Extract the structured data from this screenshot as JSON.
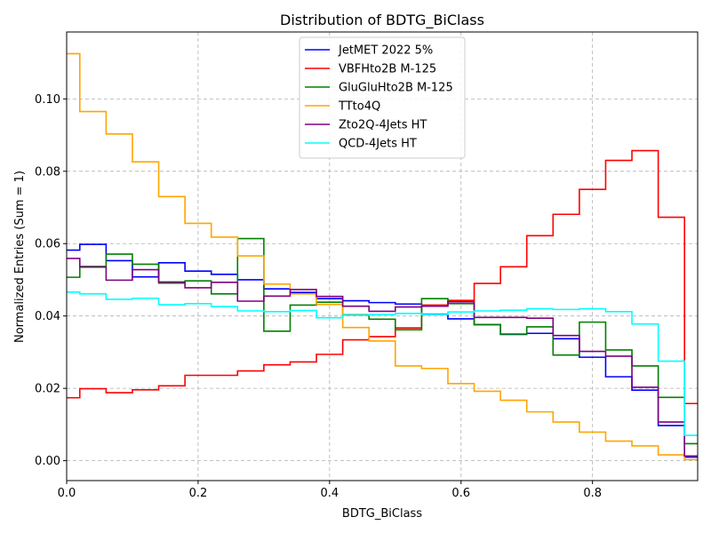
{
  "chart_data": {
    "type": "line",
    "style": "step-histogram",
    "title": "Distribution of BDTG_BiClass",
    "xlabel": "BDTG_BiClass",
    "ylabel": "Normalized Entries (Sum = 1)",
    "xlim": [
      0.0,
      0.96
    ],
    "ylim": [
      -0.0055,
      0.1185
    ],
    "x_ticks": [
      0.0,
      0.2,
      0.4,
      0.6,
      0.8
    ],
    "x_tick_labels": [
      "0.0",
      "0.2",
      "0.4",
      "0.6",
      "0.8"
    ],
    "y_ticks": [
      0.0,
      0.02,
      0.04,
      0.06,
      0.08,
      0.1
    ],
    "y_tick_labels": [
      "0.00",
      "0.02",
      "0.04",
      "0.06",
      "0.08",
      "0.10"
    ],
    "grid": true,
    "legend_position": "top-center",
    "bin_edges": [
      -0.02,
      0.02,
      0.06,
      0.1,
      0.14,
      0.18,
      0.22,
      0.26,
      0.3,
      0.34,
      0.38,
      0.42,
      0.46,
      0.5,
      0.54,
      0.58,
      0.62,
      0.66,
      0.7,
      0.74,
      0.78,
      0.82,
      0.86,
      0.9,
      0.94,
      0.98
    ],
    "series": [
      {
        "name": "JetMET 2022 5%",
        "color": "#0000ff",
        "values": [
          0.0582,
          0.0598,
          0.0553,
          0.0508,
          0.0547,
          0.0524,
          0.0515,
          0.05,
          0.0475,
          0.0465,
          0.0448,
          0.0442,
          0.0437,
          0.0433,
          0.0405,
          0.0392,
          0.0376,
          0.0349,
          0.0352,
          0.0337,
          0.0286,
          0.0232,
          0.0195,
          0.0097,
          0.001
        ]
      },
      {
        "name": "VBFHto2B M-125",
        "color": "#ff0000",
        "values": [
          0.0174,
          0.0199,
          0.0188,
          0.0196,
          0.0207,
          0.0236,
          0.0236,
          0.0248,
          0.0265,
          0.0273,
          0.0294,
          0.0334,
          0.0343,
          0.0367,
          0.043,
          0.0443,
          0.049,
          0.0536,
          0.0622,
          0.0681,
          0.075,
          0.083,
          0.0857,
          0.0673,
          0.0158
        ]
      },
      {
        "name": "GluGluHto2B M-125",
        "color": "#008000",
        "values": [
          0.0507,
          0.0537,
          0.0571,
          0.0543,
          0.0491,
          0.0497,
          0.0461,
          0.0614,
          0.0358,
          0.043,
          0.0438,
          0.0403,
          0.0391,
          0.0362,
          0.0448,
          0.0434,
          0.0376,
          0.035,
          0.037,
          0.0292,
          0.0383,
          0.0306,
          0.0262,
          0.0175,
          0.0047
        ]
      },
      {
        "name": "TTto4Q",
        "color": "#ffa500",
        "values": [
          0.1125,
          0.0965,
          0.0903,
          0.0826,
          0.073,
          0.0656,
          0.0618,
          0.0566,
          0.0488,
          0.0461,
          0.0432,
          0.0368,
          0.0331,
          0.0262,
          0.0255,
          0.0213,
          0.0192,
          0.0167,
          0.0135,
          0.0107,
          0.0079,
          0.0054,
          0.0041,
          0.0016,
          0.0003
        ]
      },
      {
        "name": "Zto2Q-4Jets HT",
        "color": "#800080",
        "values": [
          0.0559,
          0.0535,
          0.0499,
          0.0528,
          0.0494,
          0.0478,
          0.0493,
          0.0441,
          0.0455,
          0.0473,
          0.0454,
          0.0427,
          0.0413,
          0.0425,
          0.0427,
          0.0439,
          0.0396,
          0.0396,
          0.0394,
          0.0346,
          0.0302,
          0.0289,
          0.0203,
          0.0107,
          0.0013
        ]
      },
      {
        "name": "QCD-4Jets HT",
        "color": "#00ffff",
        "values": [
          0.0466,
          0.0461,
          0.0446,
          0.0449,
          0.0431,
          0.0434,
          0.0426,
          0.0414,
          0.0412,
          0.0415,
          0.0395,
          0.0402,
          0.0404,
          0.0407,
          0.0404,
          0.0411,
          0.0414,
          0.0416,
          0.042,
          0.0418,
          0.042,
          0.0412,
          0.0378,
          0.0275,
          0.007
        ]
      }
    ]
  }
}
